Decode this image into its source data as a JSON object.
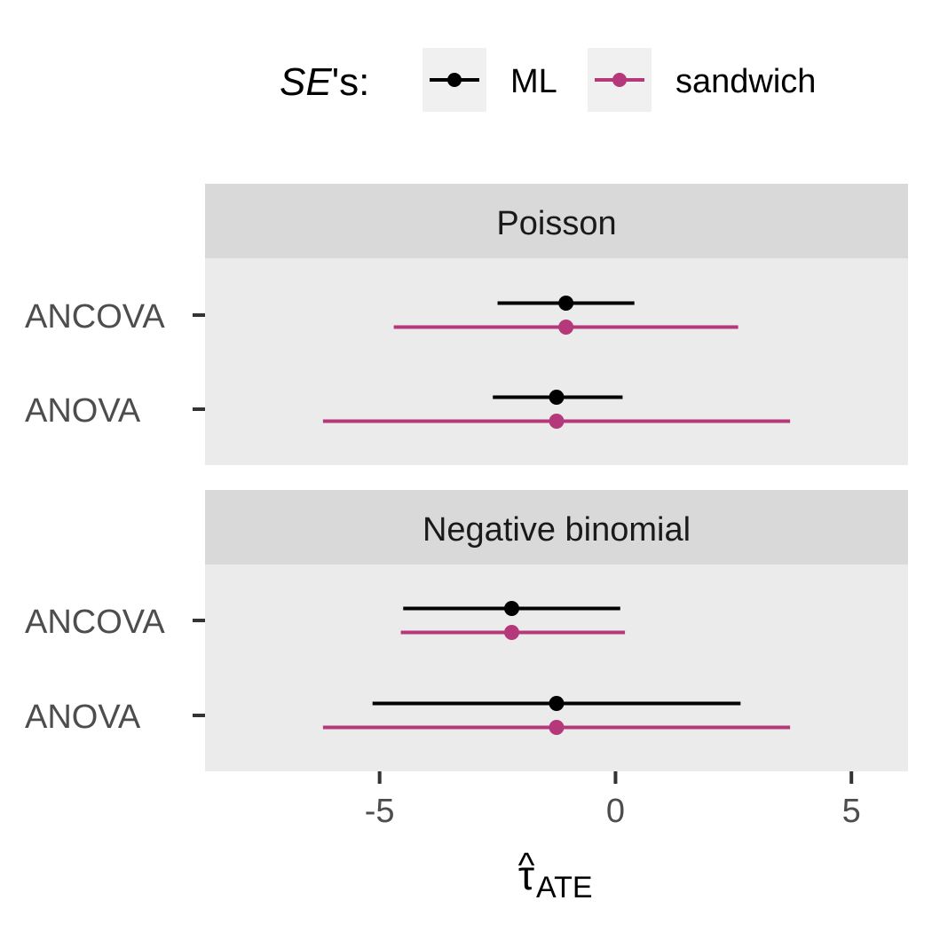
{
  "chart_data": {
    "type": "forest",
    "legend": {
      "title_var": "SE",
      "title_suffix": "'s:",
      "position": "top",
      "entries": [
        {
          "key": "ml",
          "label": "ML",
          "color": "#000000"
        },
        {
          "key": "sandwich",
          "label": "sandwich",
          "color": "#b5387a"
        }
      ]
    },
    "xlabel_main": "τ",
    "xlabel_hat": "^",
    "xlabel_sub": "ATE",
    "xlim": [
      -8.7,
      6.2
    ],
    "x_ticks": [
      -5,
      0,
      5
    ],
    "x_tick_labels": [
      "-5",
      "0",
      "5"
    ],
    "grid": false,
    "panels": [
      {
        "title": "Poisson",
        "rows": [
          {
            "label": "ANCOVA",
            "ml": {
              "estimate": -1.05,
              "lower": -2.5,
              "upper": 0.4
            },
            "sandwich": {
              "estimate": -1.05,
              "lower": -4.7,
              "upper": 2.6
            }
          },
          {
            "label": "ANOVA",
            "ml": {
              "estimate": -1.25,
              "lower": -2.6,
              "upper": 0.15
            },
            "sandwich": {
              "estimate": -1.25,
              "lower": -6.2,
              "upper": 3.7
            }
          }
        ]
      },
      {
        "title": "Negative binomial",
        "rows": [
          {
            "label": "ANCOVA",
            "ml": {
              "estimate": -2.2,
              "lower": -4.5,
              "upper": 0.1
            },
            "sandwich": {
              "estimate": -2.2,
              "lower": -4.55,
              "upper": 0.2
            }
          },
          {
            "label": "ANOVA",
            "ml": {
              "estimate": -1.25,
              "lower": -5.15,
              "upper": 2.65
            },
            "sandwich": {
              "estimate": -1.25,
              "lower": -6.2,
              "upper": 3.7
            }
          }
        ]
      }
    ]
  }
}
